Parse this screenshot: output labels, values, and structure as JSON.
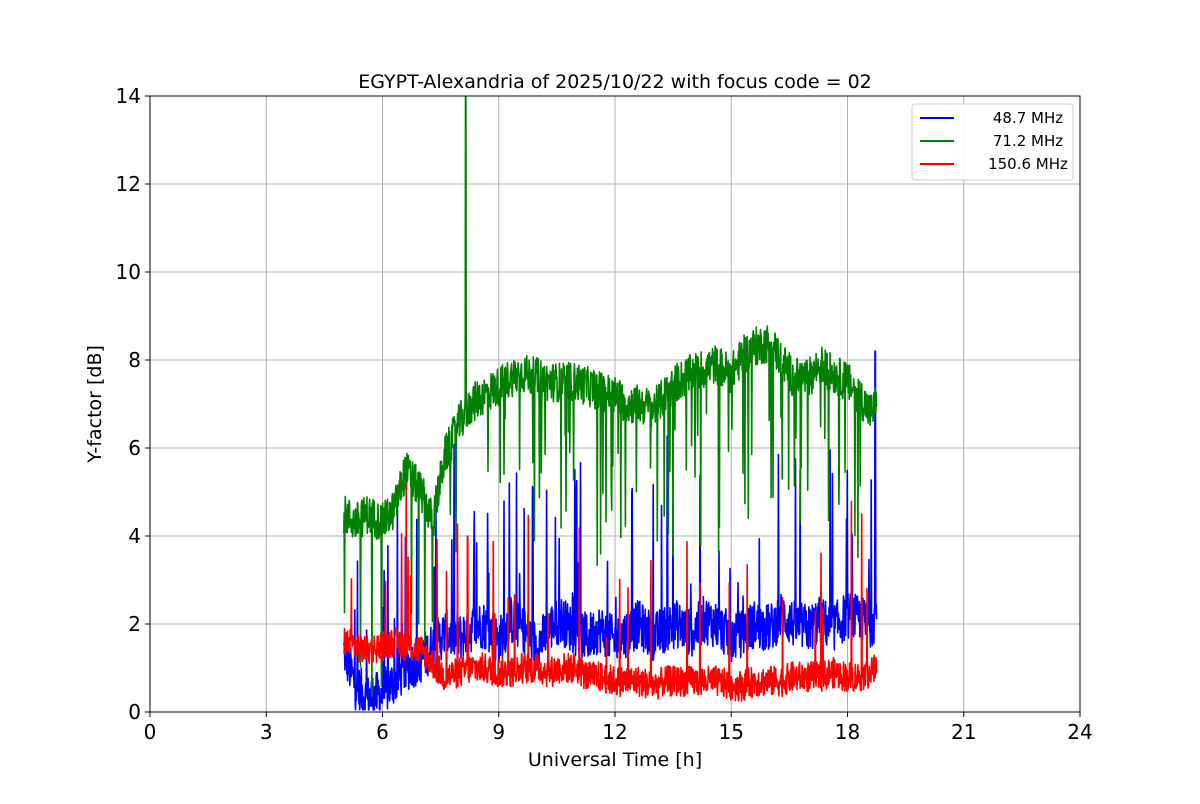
{
  "chart_data": {
    "type": "line",
    "title": "EGYPT-Alexandria of 2025/10/22 with focus code = 02",
    "xlabel": "Universal Time [h]",
    "ylabel": "Y-factor [dB]",
    "xlim": [
      0,
      24
    ],
    "ylim": [
      0,
      14
    ],
    "xticks": [
      0,
      3,
      6,
      9,
      12,
      15,
      18,
      21,
      24
    ],
    "yticks": [
      0,
      2,
      4,
      6,
      8,
      10,
      12,
      14
    ],
    "grid": true,
    "legend_position": "top-right",
    "series": [
      {
        "name": "48.7 MHz",
        "color": "#0000ff",
        "x": [
          5.0,
          5.3,
          5.6,
          6.0,
          6.3,
          6.6,
          7.0,
          7.3,
          7.6,
          8.0,
          8.3,
          8.6,
          9.0,
          9.3,
          9.6,
          10.0,
          10.3,
          10.6,
          11.0,
          11.3,
          11.6,
          12.0,
          12.3,
          12.6,
          13.0,
          13.3,
          13.6,
          14.0,
          14.3,
          14.6,
          15.0,
          15.3,
          15.6,
          16.0,
          16.3,
          16.6,
          17.0,
          17.3,
          17.6,
          18.0,
          18.3,
          18.6,
          18.75
        ],
        "y": [
          1.4,
          0.6,
          0.3,
          0.4,
          0.7,
          1.0,
          1.2,
          1.5,
          1.8,
          1.7,
          1.9,
          2.0,
          1.6,
          2.1,
          1.9,
          1.5,
          1.9,
          2.1,
          1.8,
          1.7,
          1.9,
          1.6,
          1.8,
          2.0,
          1.7,
          1.9,
          2.0,
          1.8,
          2.1,
          2.0,
          1.7,
          1.8,
          2.0,
          1.9,
          2.2,
          2.0,
          1.9,
          2.1,
          1.9,
          2.2,
          2.1,
          2.0,
          2.2
        ],
        "peak": {
          "x": 18.72,
          "y": 8.2
        }
      },
      {
        "name": "71.2 MHz",
        "color": "#008000",
        "x": [
          5.0,
          5.3,
          5.6,
          6.0,
          6.3,
          6.6,
          7.0,
          7.3,
          7.6,
          8.0,
          8.3,
          8.6,
          9.0,
          9.3,
          9.6,
          10.0,
          10.3,
          10.6,
          11.0,
          11.3,
          11.6,
          12.0,
          12.3,
          12.6,
          13.0,
          13.3,
          13.6,
          14.0,
          14.3,
          14.6,
          15.0,
          15.3,
          15.6,
          16.0,
          16.3,
          16.6,
          17.0,
          17.3,
          17.6,
          18.0,
          18.3,
          18.6,
          18.75
        ],
        "y": [
          4.5,
          4.3,
          4.5,
          4.3,
          4.6,
          5.5,
          5.0,
          4.3,
          5.8,
          6.6,
          7.0,
          7.2,
          7.4,
          7.6,
          7.7,
          7.6,
          7.5,
          7.5,
          7.5,
          7.4,
          7.3,
          7.2,
          7.0,
          7.0,
          6.9,
          7.2,
          7.5,
          7.7,
          7.8,
          7.9,
          7.7,
          8.1,
          8.3,
          8.4,
          8.0,
          7.6,
          7.6,
          7.9,
          7.7,
          7.5,
          7.2,
          6.8,
          7.0
        ],
        "peak": {
          "x": 8.15,
          "y": 14.0
        }
      },
      {
        "name": "150.6 MHz",
        "color": "#ff0000",
        "x": [
          5.0,
          5.3,
          5.6,
          6.0,
          6.3,
          6.6,
          7.0,
          7.3,
          7.6,
          8.0,
          8.3,
          8.6,
          9.0,
          9.3,
          9.6,
          10.0,
          10.3,
          10.6,
          11.0,
          11.3,
          11.6,
          12.0,
          12.3,
          12.6,
          13.0,
          13.3,
          13.6,
          14.0,
          14.3,
          14.6,
          15.0,
          15.3,
          15.6,
          16.0,
          16.3,
          16.6,
          17.0,
          17.3,
          17.6,
          18.0,
          18.3,
          18.6,
          18.75
        ],
        "y": [
          1.6,
          1.5,
          1.4,
          1.5,
          1.6,
          1.5,
          1.4,
          1.1,
          0.8,
          0.9,
          1.0,
          1.0,
          0.9,
          0.9,
          1.0,
          1.0,
          0.9,
          1.0,
          1.0,
          0.8,
          0.8,
          0.7,
          0.7,
          0.7,
          0.6,
          0.7,
          0.7,
          0.7,
          0.7,
          0.7,
          0.6,
          0.6,
          0.7,
          0.7,
          0.7,
          0.8,
          0.8,
          0.8,
          0.9,
          0.8,
          0.8,
          0.9,
          1.0
        ],
        "peak": {
          "x": 8.2,
          "y": 4.0
        }
      }
    ]
  }
}
